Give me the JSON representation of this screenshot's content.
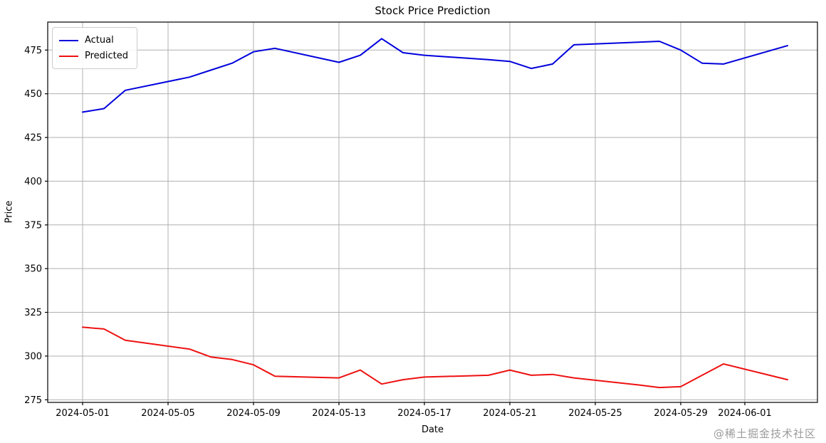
{
  "title": "Stock Price Prediction",
  "watermark": "@稀土掘金技术社区",
  "chart_data": {
    "type": "line",
    "title": "Stock Price Prediction",
    "xlabel": "Date",
    "ylabel": "Price",
    "grid": true,
    "legend_position": "upper left",
    "x": [
      "2024-05-01",
      "2024-05-02",
      "2024-05-03",
      "2024-05-06",
      "2024-05-07",
      "2024-05-08",
      "2024-05-09",
      "2024-05-10",
      "2024-05-13",
      "2024-05-14",
      "2024-05-15",
      "2024-05-16",
      "2024-05-17",
      "2024-05-20",
      "2024-05-21",
      "2024-05-22",
      "2024-05-23",
      "2024-05-24",
      "2024-05-27",
      "2024-05-28",
      "2024-05-29",
      "2024-05-30",
      "2024-05-31",
      "2024-06-03"
    ],
    "series": [
      {
        "name": "Actual",
        "color": "#0000dd",
        "values": [
          439.5,
          441.5,
          452,
          459.5,
          463.5,
          467.5,
          474,
          476,
          468,
          472,
          481.5,
          473.5,
          472,
          469.5,
          468.5,
          464.5,
          467,
          478,
          479.5,
          480,
          475,
          467.5,
          467,
          477.5
        ]
      },
      {
        "name": "Predicted",
        "color": "#ee1111",
        "values": [
          316.5,
          315.5,
          309,
          304,
          299.5,
          298,
          295,
          288.5,
          287.5,
          292,
          284,
          286.5,
          288,
          289,
          292,
          289,
          289.5,
          287.5,
          283.5,
          282,
          282.5,
          289,
          295.5,
          286.5
        ]
      }
    ],
    "y_ticks": [
      275,
      300,
      325,
      350,
      375,
      400,
      425,
      450,
      475
    ],
    "x_tick_labels": [
      "2024-05-01",
      "2024-05-05",
      "2024-05-09",
      "2024-05-13",
      "2024-05-17",
      "2024-05-21",
      "2024-05-25",
      "2024-05-29",
      "2024-06-01"
    ],
    "ylim": [
      273.5,
      491
    ],
    "xlim_days": [
      -1.6333,
      34.4
    ],
    "grid_color": "#b0b0b0",
    "spine_color": "#000000"
  }
}
